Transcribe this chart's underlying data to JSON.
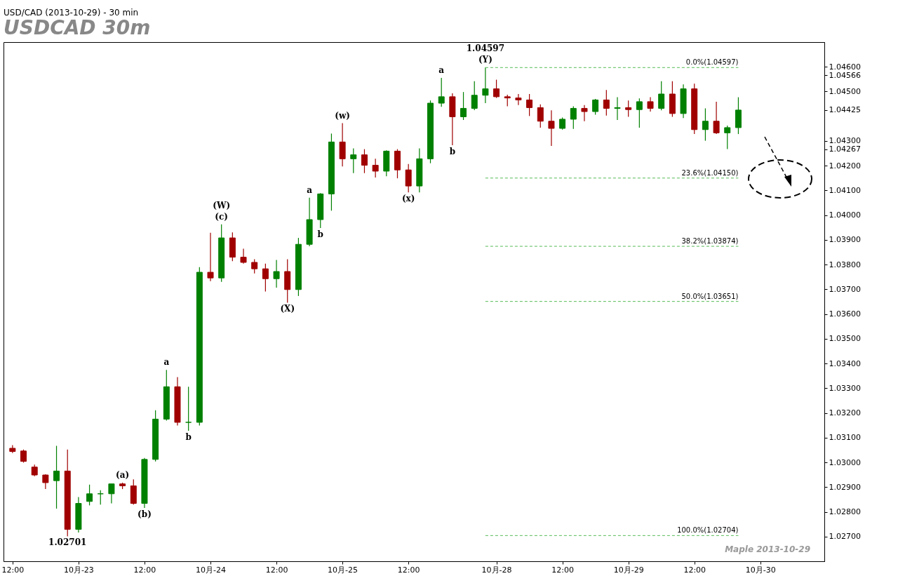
{
  "chart_data": {
    "type": "candlestick",
    "title": "USD/CAD (2013-10-29) - 30 min",
    "subtitle": "USDCAD  30m",
    "categories": [
      "12:00",
      null,
      null,
      null,
      null,
      null,
      "10月-23",
      null,
      null,
      null,
      null,
      null,
      "12:00",
      null,
      null,
      null,
      null,
      null,
      "10月-24",
      null,
      null,
      null,
      null,
      null,
      "12:00",
      null,
      null,
      null,
      null,
      null,
      "10月-25",
      null,
      null,
      null,
      null,
      null,
      "12:00",
      null,
      null,
      null,
      null,
      null,
      null,
      null,
      "10月-28",
      null,
      null,
      null,
      null,
      null,
      "12:00",
      null,
      null,
      null,
      null,
      null,
      "10月-29",
      null,
      null,
      null,
      null,
      null,
      "12:00",
      null,
      null,
      null,
      null,
      null,
      "10月-30",
      null,
      null,
      null,
      null,
      null
    ],
    "ohlc": [
      [
        1.03057,
        1.0307,
        1.03038,
        1.03044
      ],
      [
        1.03046,
        1.03052,
        1.02999,
        1.03004
      ],
      [
        1.02981,
        1.02991,
        1.02944,
        1.02949
      ],
      [
        1.02949,
        1.02952,
        1.02892,
        1.02918
      ],
      [
        1.02926,
        1.03067,
        1.02813,
        1.02965
      ],
      [
        1.02965,
        1.03052,
        1.02701,
        1.02729
      ],
      [
        1.02729,
        1.0286,
        1.02716,
        1.02834
      ],
      [
        1.02842,
        1.0291,
        1.02826,
        1.02873
      ],
      [
        1.02873,
        1.02887,
        1.02829,
        1.02873
      ],
      [
        1.02873,
        1.02913,
        1.02834,
        1.02913
      ],
      [
        1.02913,
        1.02918,
        1.02892,
        1.02905
      ],
      [
        1.02905,
        1.02931,
        1.02829,
        1.02834
      ],
      [
        1.02834,
        1.03018,
        1.02816,
        1.03012
      ],
      [
        1.03012,
        1.03211,
        1.03004,
        1.03175
      ],
      [
        1.03175,
        1.03374,
        1.03169,
        1.03306
      ],
      [
        1.03306,
        1.03345,
        1.03149,
        1.03162
      ],
      [
        1.03162,
        1.03306,
        1.03128,
        1.03162
      ],
      [
        1.03162,
        1.0379,
        1.03149,
        1.03769
      ],
      [
        1.03769,
        1.03929,
        1.03733,
        1.03746
      ],
      [
        1.03746,
        1.03963,
        1.0373,
        1.03908
      ],
      [
        1.03908,
        1.0393,
        1.03814,
        1.0383
      ],
      [
        1.0383,
        1.03864,
        1.03804,
        1.03809
      ],
      [
        1.03809,
        1.03822,
        1.03764,
        1.03783
      ],
      [
        1.03783,
        1.03804,
        1.03691,
        1.03743
      ],
      [
        1.03743,
        1.03819,
        1.03707,
        1.03772
      ],
      [
        1.03772,
        1.03822,
        1.03646,
        1.03699
      ],
      [
        1.03699,
        1.03908,
        1.03673,
        1.03882
      ],
      [
        1.03882,
        1.04071,
        1.03874,
        1.03982
      ],
      [
        1.03982,
        1.04089,
        1.03948,
        1.04086
      ],
      [
        1.04086,
        1.0433,
        1.04018,
        1.04296
      ],
      [
        1.04296,
        1.04372,
        1.04197,
        1.04228
      ],
      [
        1.04228,
        1.0427,
        1.0417,
        1.04244
      ],
      [
        1.04244,
        1.04267,
        1.0417,
        1.04202
      ],
      [
        1.04202,
        1.04228,
        1.04152,
        1.04178
      ],
      [
        1.04178,
        1.04262,
        1.04157,
        1.04259
      ],
      [
        1.04259,
        1.04267,
        1.04149,
        1.04183
      ],
      [
        1.04183,
        1.04207,
        1.04092,
        1.04118
      ],
      [
        1.04118,
        1.0427,
        1.04092,
        1.04228
      ],
      [
        1.04228,
        1.04464,
        1.0421,
        1.04453
      ],
      [
        1.04453,
        1.04555,
        1.04438,
        1.04479
      ],
      [
        1.04479,
        1.04493,
        1.04283,
        1.04398
      ],
      [
        1.04398,
        1.04498,
        1.04385,
        1.04432
      ],
      [
        1.04432,
        1.04542,
        1.04425,
        1.04485
      ],
      [
        1.04485,
        1.04597,
        1.04453,
        1.04511
      ],
      [
        1.04511,
        1.04548,
        1.04474,
        1.04479
      ],
      [
        1.04479,
        1.04487,
        1.0444,
        1.04474
      ],
      [
        1.04474,
        1.0449,
        1.04445,
        1.04466
      ],
      [
        1.04466,
        1.0449,
        1.04401,
        1.04435
      ],
      [
        1.04435,
        1.04448,
        1.04354,
        1.0438
      ],
      [
        1.0438,
        1.04424,
        1.0428,
        1.04351
      ],
      [
        1.04351,
        1.04395,
        1.04346,
        1.04388
      ],
      [
        1.04388,
        1.0444,
        1.04349,
        1.04432
      ],
      [
        1.04432,
        1.04445,
        1.0438,
        1.04419
      ],
      [
        1.04419,
        1.0447,
        1.04406,
        1.04466
      ],
      [
        1.04466,
        1.04506,
        1.04403,
        1.04432
      ],
      [
        1.04432,
        1.04477,
        1.04385,
        1.04435
      ],
      [
        1.04435,
        1.04464,
        1.04398,
        1.04427
      ],
      [
        1.04427,
        1.04472,
        1.04354,
        1.04459
      ],
      [
        1.04459,
        1.04477,
        1.04419,
        1.04432
      ],
      [
        1.04432,
        1.04542,
        1.04424,
        1.0449
      ],
      [
        1.0449,
        1.04542,
        1.04398,
        1.04411
      ],
      [
        1.04411,
        1.04529,
        1.04393,
        1.04511
      ],
      [
        1.04511,
        1.04532,
        1.04328,
        1.04346
      ],
      [
        1.04346,
        1.04432,
        1.04301,
        1.0438
      ],
      [
        1.0438,
        1.04459,
        1.04328,
        1.04333
      ],
      [
        1.04333,
        1.04362,
        1.04267,
        1.04354
      ],
      [
        1.04354,
        1.04477,
        1.04328,
        1.04425
      ],
      null,
      null,
      null,
      null,
      null,
      null,
      null
    ],
    "colors": [
      "#a00000",
      "#a00000",
      "#a00000",
      "#a00000",
      "#008000",
      "#a00000",
      "#008000",
      "#008000",
      "#008000",
      "#008000",
      "#a00000",
      "#a00000",
      "#008000",
      "#008000",
      "#008000",
      "#a00000",
      "#008000",
      "#008000",
      "#a00000",
      "#008000",
      "#a00000",
      "#a00000",
      "#a00000",
      "#a00000",
      "#008000",
      "#a00000",
      "#008000",
      "#008000",
      "#008000",
      "#008000",
      "#a00000",
      "#008000",
      "#a00000",
      "#a00000",
      "#008000",
      "#a00000",
      "#a00000",
      "#008000",
      "#008000",
      "#008000",
      "#a00000",
      "#008000",
      "#008000",
      "#008000",
      "#a00000",
      "#a00000",
      "#a00000",
      "#a00000",
      "#a00000",
      "#a00000",
      "#008000",
      "#008000",
      "#a00000",
      "#008000",
      "#a00000",
      "#008000",
      "#a00000",
      "#008000",
      "#a00000",
      "#008000",
      "#a00000",
      "#008000",
      "#a00000",
      "#008000",
      "#a00000",
      "#008000",
      "#008000",
      null,
      null,
      null,
      null,
      null,
      null,
      null
    ],
    "ylim": [
      1.026,
      1.047
    ],
    "yticks": [
      {
        "value": 1.027,
        "label": "1.02700"
      },
      {
        "value": 1.028,
        "label": "1.02800"
      },
      {
        "value": 1.029,
        "label": "1.02900"
      },
      {
        "value": 1.03,
        "label": "1.03000"
      },
      {
        "value": 1.031,
        "label": "1.03100"
      },
      {
        "value": 1.032,
        "label": "1.03200"
      },
      {
        "value": 1.033,
        "label": "1.03300"
      },
      {
        "value": 1.034,
        "label": "1.03400"
      },
      {
        "value": 1.035,
        "label": "1.03500"
      },
      {
        "value": 1.036,
        "label": "1.03600"
      },
      {
        "value": 1.037,
        "label": "1.03700"
      },
      {
        "value": 1.038,
        "label": "1.03800"
      },
      {
        "value": 1.039,
        "label": "1.03900"
      },
      {
        "value": 1.04,
        "label": "1.04000"
      },
      {
        "value": 1.041,
        "label": "1.04100"
      },
      {
        "value": 1.042,
        "label": "1.04200"
      },
      1.04267,
      {
        "value": 1.043,
        "label": "1.04300"
      },
      1.04425,
      {
        "value": 1.045,
        "label": "1.04500"
      },
      1.04566,
      {
        "value": 1.046,
        "label": "1.04600"
      }
    ],
    "ref_lines": [
      {
        "axis": "y",
        "value": 1.04597,
        "label": "0.0%(1.04597)",
        "color": "#55bb55",
        "line_style": "dashed"
      },
      {
        "axis": "y",
        "value": 1.0415,
        "label": "23.6%(1.04150)",
        "color": "#55bb55",
        "line_style": "dashed"
      },
      {
        "axis": "y",
        "value": 1.03874,
        "label": "38.2%(1.03874)",
        "color": "#55bb55",
        "line_style": "dashed"
      },
      {
        "axis": "y",
        "value": 1.03651,
        "label": "50.0%(1.03651)",
        "color": "#55bb55",
        "line_style": "dashed"
      },
      {
        "axis": "y",
        "value": 1.02704,
        "label": "100.0%(1.02704)",
        "color": "#55bb55",
        "line_style": "dashed"
      }
    ],
    "annotations": [
      {
        "text": "(a)",
        "y": 1.02918
      },
      {
        "text": "(b)",
        "y": 1.02816
      },
      {
        "text": "1.02701",
        "y": 1.02701
      },
      {
        "text": "a",
        "y": 1.03374
      },
      {
        "text": "b",
        "y": 1.03128
      },
      {
        "text": "(c)",
        "y": 1.03963
      },
      {
        "text": "(W)",
        "y": 1.03963
      },
      {
        "text": "(X)",
        "y": 1.03646
      },
      {
        "text": "a",
        "y": 1.04071
      },
      {
        "text": "b",
        "y": 1.03948
      },
      {
        "text": "(w)",
        "y": 1.04372
      },
      {
        "text": "(x)",
        "y": 1.04092
      },
      {
        "text": "a",
        "y": 1.04555
      },
      {
        "text": "b",
        "y": 1.04283
      },
      {
        "text": "(Y)",
        "y": 1.04597
      },
      {
        "text": "1.04597",
        "y": 1.04597
      },
      "Maple  2013-10-29"
    ]
  }
}
